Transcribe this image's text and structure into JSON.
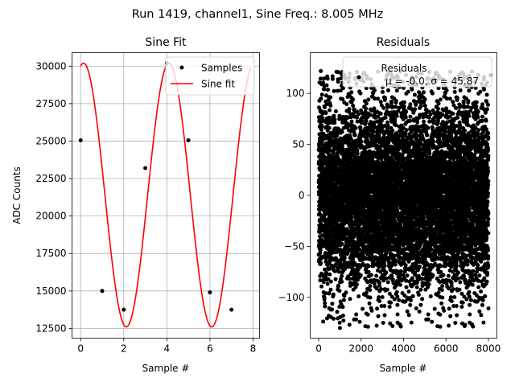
{
  "figure": {
    "suptitle": "Run 1419, channel1, Sine Freq.: 8.005 MHz"
  },
  "chart_data": [
    {
      "type": "scatter",
      "title": "Sine Fit",
      "xlabel": "Sample #",
      "ylabel": "ADC Counts",
      "xlim": [
        -0.4,
        8.3
      ],
      "ylim": [
        11850,
        30900
      ],
      "xticks": [
        0,
        2,
        4,
        6,
        8
      ],
      "yticks": [
        12500,
        15000,
        17500,
        20000,
        22500,
        25000,
        27500,
        30000
      ],
      "grid": true,
      "legend_position": "upper right",
      "series": [
        {
          "name": "Samples",
          "marker": "dot",
          "color": "#000000",
          "x": [
            0,
            1,
            2,
            3,
            4,
            5,
            6,
            7
          ],
          "y": [
            25050,
            15000,
            13750,
            23200,
            30200,
            25050,
            14900,
            13750
          ]
        },
        {
          "name": "Sine fit",
          "style": "line",
          "color": "#ff0000",
          "fit": {
            "offset": 21400,
            "amplitude": 8800,
            "period_samples": 3.964,
            "peak_at_sample": 4.1,
            "x_range": [
              0,
              7.9
            ]
          }
        }
      ]
    },
    {
      "type": "scatter",
      "title": "Residuals",
      "xlabel": "Sample #",
      "ylabel": "",
      "xlim": [
        -400,
        8400
      ],
      "ylim": [
        -140,
        140
      ],
      "xticks": [
        0,
        2000,
        4000,
        6000,
        8000
      ],
      "yticks": [
        -100,
        -50,
        0,
        50,
        100
      ],
      "grid": false,
      "legend_position": "upper right",
      "series": [
        {
          "name": "Residuals",
          "stats_line": "μ = -0.0, σ = 45.87",
          "marker": "dot",
          "color": "#000000",
          "generator": {
            "count": 8192,
            "mean": 0.0,
            "std": 45.87,
            "y_range": [
              -130,
              122
            ]
          },
          "outliers": [
            {
              "x": 1000,
              "y": -130
            },
            {
              "x": 100,
              "y": 122
            },
            {
              "x": 6900,
              "y": -127
            },
            {
              "x": 8100,
              "y": 118
            }
          ]
        }
      ]
    }
  ]
}
